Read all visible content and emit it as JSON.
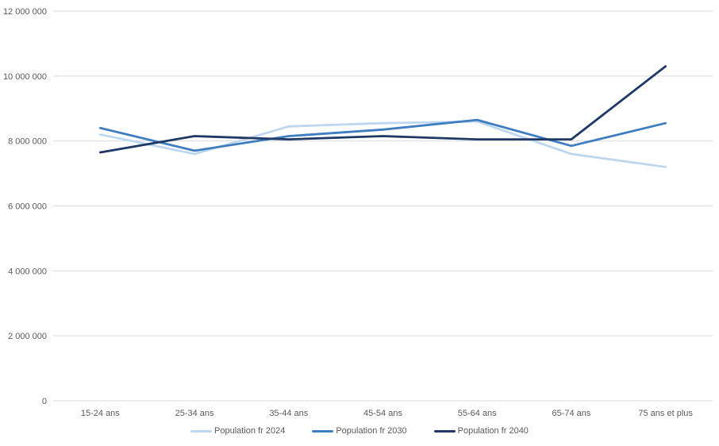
{
  "chart_data": {
    "type": "line",
    "title": "",
    "xlabel": "",
    "ylabel": "",
    "grid": true,
    "legend_position": "bottom",
    "categories": [
      "15-24 ans",
      "25-34 ans",
      "35-44 ans",
      "45-54 ans",
      "55-64 ans",
      "65-74 ans",
      "75 ans et plus"
    ],
    "series": [
      {
        "name": "Population fr 2024",
        "color": "#BDD7EE",
        "values": [
          8200000,
          7600000,
          8450000,
          8550000,
          8600000,
          7600000,
          7200000
        ]
      },
      {
        "name": "Population fr 2030",
        "color": "#3E7DC0",
        "values": [
          8400000,
          7700000,
          8150000,
          8350000,
          8650000,
          7850000,
          8550000
        ]
      },
      {
        "name": "Population fr 2040",
        "color": "#1F3864",
        "values": [
          7650000,
          8150000,
          8050000,
          8150000,
          8050000,
          8050000,
          10300000
        ]
      }
    ],
    "ylim": [
      0,
      12000000
    ],
    "ytick_step": 2000000,
    "ytick_labels": [
      "0",
      "2 000 000",
      "4 000 000",
      "6 000 000",
      "8 000 000",
      "10 000 000",
      "12 000 000"
    ]
  },
  "style": {
    "axis_text_color": "#595959",
    "gridline_color": "#D9D9D9",
    "background_color": "#FFFFFF"
  }
}
